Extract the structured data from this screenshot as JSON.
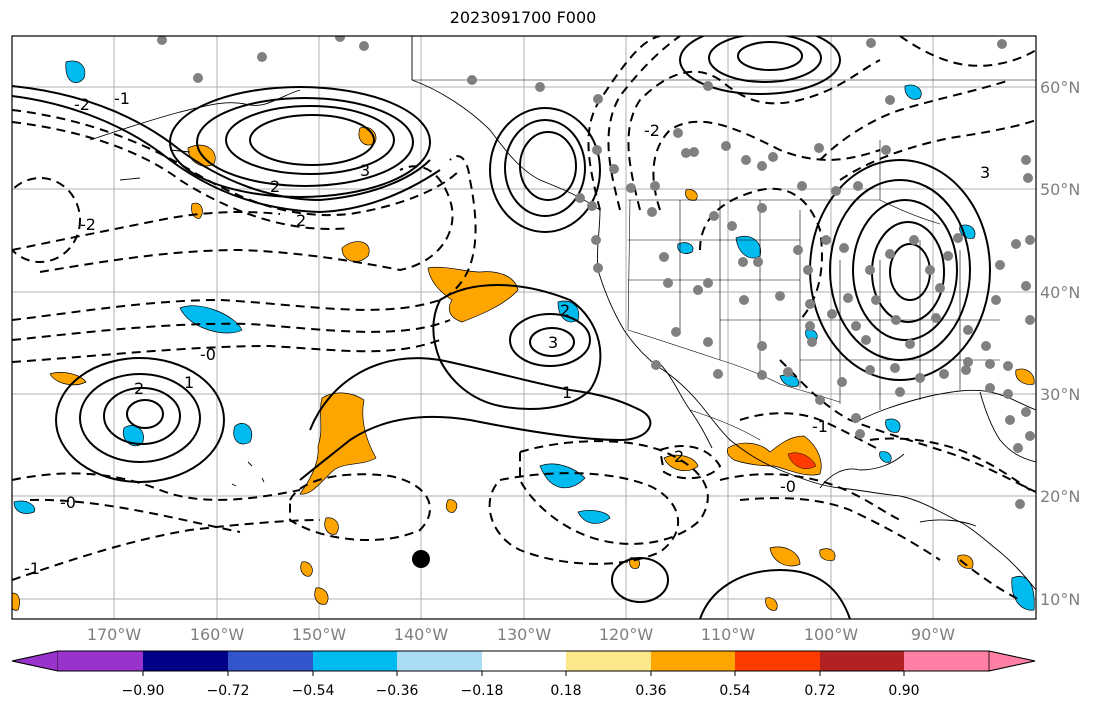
{
  "title": "2023091700 F000",
  "map": {
    "region": "Eastern North Pacific and North America",
    "longitude_labels": [
      "170°W",
      "160°W",
      "150°W",
      "140°W",
      "130°W",
      "120°W",
      "110°W",
      "100°W",
      "90°W"
    ],
    "latitude_labels": [
      "60°N",
      "50°N",
      "40°N",
      "30°N",
      "20°N",
      "10°N"
    ],
    "contour_style": {
      "positive": "solid",
      "negative": "dashed",
      "color": "#000000"
    },
    "contour_labels": [
      {
        "text": "-2",
        "pos": "upper-left"
      },
      {
        "text": "-1",
        "pos": "upper-left"
      },
      {
        "text": "2",
        "pos": "upper-left"
      },
      {
        "text": "3",
        "pos": "left-center"
      },
      {
        "text": "2",
        "pos": "gulf of alaska"
      },
      {
        "text": "-2",
        "pos": "central north pacific"
      },
      {
        "text": "3",
        "pos": "off california"
      },
      {
        "text": "2",
        "pos": "off california"
      },
      {
        "text": "1",
        "pos": "off california"
      },
      {
        "text": "-0",
        "pos": "subtropical"
      },
      {
        "text": "2",
        "pos": "west subtropical"
      },
      {
        "text": "1",
        "pos": "west subtropical"
      },
      {
        "text": "-0",
        "pos": "tropical"
      },
      {
        "text": "-1",
        "pos": "tropical"
      },
      {
        "text": "-2",
        "pos": "north america"
      },
      {
        "text": "3",
        "pos": "great lakes"
      },
      {
        "text": "-1",
        "pos": "mexico"
      },
      {
        "text": "2",
        "pos": "mexico"
      },
      {
        "text": "-0",
        "pos": "central america"
      }
    ],
    "marker_color": "#808080",
    "special_marker": {
      "color": "#000000",
      "lat": 14,
      "lon": -140
    }
  },
  "colorbar": {
    "colors": [
      "#9933cc",
      "#000088",
      "#3355cc",
      "#00bbf0",
      "#aaddf5",
      "#ffffff",
      "#fce78a",
      "#ffa500",
      "#ff3b00",
      "#b22222",
      "#ff7fa5"
    ],
    "tick_labels": [
      "−0.90",
      "−0.72",
      "−0.54",
      "−0.36",
      "−0.18",
      "0.18",
      "0.36",
      "0.54",
      "0.72",
      "0.90"
    ]
  }
}
